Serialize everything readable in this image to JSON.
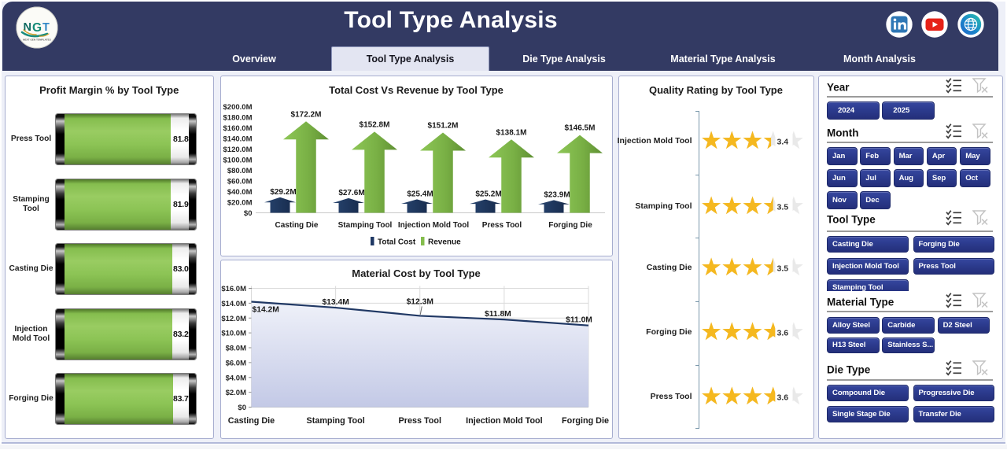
{
  "header": {
    "title": "Tool Type Analysis",
    "logo": {
      "text": "NGT",
      "letters": [
        "N",
        "G",
        "T"
      ],
      "subtext": "NEXT GEN TEMPLATES"
    },
    "tabs": [
      {
        "label": "Overview",
        "active": false
      },
      {
        "label": "Tool Type Analysis",
        "active": true
      },
      {
        "label": "Die Type Analysis",
        "active": false
      },
      {
        "label": "Material Type Analysis",
        "active": false
      },
      {
        "label": "Month Analysis",
        "active": false
      }
    ],
    "social_icons": [
      "linkedin-icon",
      "youtube-icon",
      "globe-icon"
    ]
  },
  "colors": {
    "header_bg": "#333a63",
    "active_tab_bg": "#e3e5f2",
    "slicer_button": "#2c3b8e",
    "dark_navy": "#1f3864",
    "green": "#84bd4d",
    "gold_star": "#f5b81f",
    "grey_star": "#e9e9e9",
    "panel_border": "#a6adcf",
    "area_fill": "#c7cce9",
    "axis_line": "#7a98ab"
  },
  "chart_data": [
    {
      "id": "profit_margin",
      "type": "bar",
      "title": "Profit Margin % by Tool Type",
      "categories": [
        "Press Tool",
        "Stamping Tool",
        "Casting Die",
        "Injection Mold Tool",
        "Forging Die"
      ],
      "values": [
        81.8,
        81.9,
        83.0,
        83.2,
        83.7
      ],
      "value_labels": [
        "81.8%",
        "81.9%",
        "83.0%",
        "83.2%",
        "83.7%"
      ],
      "xlim": [
        0,
        100
      ]
    },
    {
      "id": "cost_vs_revenue",
      "type": "bar",
      "title": "Total Cost Vs Revenue by Tool Type",
      "categories": [
        "Casting Die",
        "Stamping Tool",
        "Injection Mold Tool",
        "Press Tool",
        "Forging Die"
      ],
      "series": [
        {
          "name": "Total Cost",
          "values": [
            29.2,
            27.6,
            25.4,
            25.2,
            23.9
          ],
          "labels": [
            "$29.2M",
            "$27.6M",
            "$25.4M",
            "$25.2M",
            "$23.9M"
          ],
          "color": "#1f3864"
        },
        {
          "name": "Revenue",
          "values": [
            172.2,
            152.8,
            151.2,
            138.1,
            146.5
          ],
          "labels": [
            "$172.2M",
            "$152.8M",
            "$151.2M",
            "$138.1M",
            "$146.5M"
          ],
          "color": "#84bd4d"
        }
      ],
      "ylim": [
        0,
        200
      ],
      "ytick_step": 20,
      "ytick_labels": [
        "$0",
        "$20.0M",
        "$40.0M",
        "$60.0M",
        "$80.0M",
        "$100.0M",
        "$120.0M",
        "$140.0M",
        "$160.0M",
        "$180.0M",
        "$200.0M"
      ],
      "legend_position": "bottom",
      "grid": false
    },
    {
      "id": "material_cost",
      "type": "area",
      "title": "Material Cost by Tool Type",
      "categories": [
        "Casting Die",
        "Stamping Tool",
        "Press Tool",
        "Injection Mold Tool",
        "Forging Die"
      ],
      "values": [
        14.2,
        13.4,
        12.3,
        11.8,
        11.0
      ],
      "labels": [
        "$14.2M",
        "$13.4M",
        "$12.3M",
        "$11.8M",
        "$11.0M"
      ],
      "ylim": [
        0,
        16
      ],
      "ytick_step": 2,
      "ytick_labels": [
        "$0",
        "$2.0M",
        "$4.0M",
        "$6.0M",
        "$8.0M",
        "$10.0M",
        "$12.0M",
        "$14.0M",
        "$16.0M"
      ],
      "grid": true
    },
    {
      "id": "quality_rating",
      "type": "bar",
      "title": "Quality Rating by Tool Type",
      "categories": [
        "Injection Mold Tool",
        "Stamping Tool",
        "Casting Die",
        "Forging Die",
        "Press Tool"
      ],
      "values": [
        3.4,
        3.5,
        3.5,
        3.6,
        3.6
      ],
      "value_labels": [
        "3.4",
        "3.5",
        "3.5",
        "3.6",
        "3.6"
      ],
      "xlim": [
        0,
        5
      ]
    }
  ],
  "slicers": [
    {
      "title": "Year",
      "cols": 3,
      "items": [
        "2024",
        "2025"
      ]
    },
    {
      "title": "Month",
      "cols": 5,
      "items": [
        "Jan",
        "Feb",
        "Mar",
        "Apr",
        "May",
        "Jun",
        "Jul",
        "Aug",
        "Sep",
        "Oct",
        "Nov",
        "Dec"
      ]
    },
    {
      "title": "Tool Type",
      "cols": 2,
      "items": [
        "Casting Die",
        "Forging Die",
        "Injection Mold Tool",
        "Press Tool",
        "Stamping Tool"
      ]
    },
    {
      "title": "Material Type",
      "cols": 3,
      "items": [
        "Alloy Steel",
        "Carbide",
        "D2 Steel",
        "H13 Steel",
        "Stainless S..."
      ]
    },
    {
      "title": "Die Type",
      "cols": 2,
      "items": [
        "Compound Die",
        "Progressive Die",
        "Single Stage Die",
        "Transfer Die"
      ]
    }
  ]
}
